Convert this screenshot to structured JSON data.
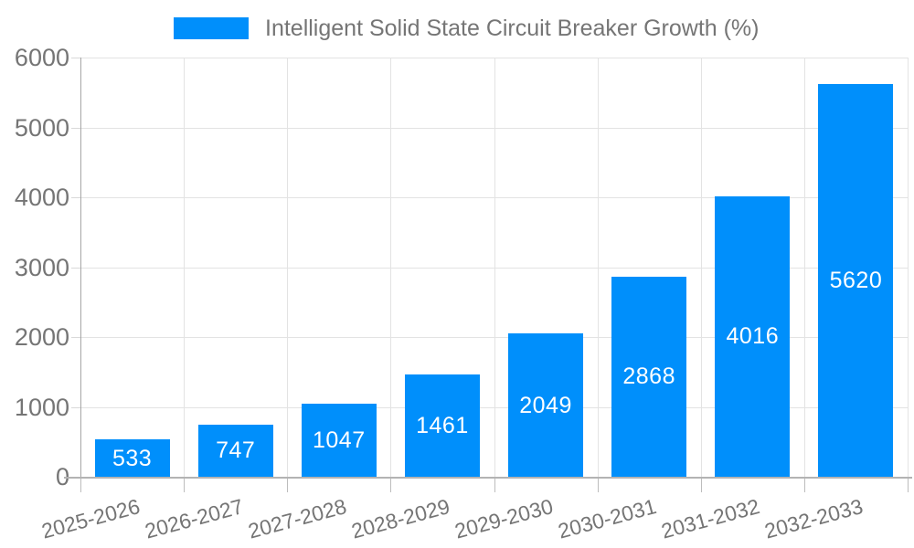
{
  "legend": {
    "series_label": "Intelligent Solid State Circuit Breaker Growth (%)"
  },
  "colors": {
    "bar": "#008FFB",
    "text": "#757575",
    "data_label": "#ffffff",
    "grid": "#e3e3e3",
    "axis_left": "#a6a6a6",
    "axis_bottom": "#b3b3b3",
    "tick": "#d9d9d9",
    "tick_bottom": "#bdbdbd",
    "background": "#ffffff"
  },
  "chart_data": {
    "type": "bar",
    "title": "Intelligent Solid State Circuit Breaker Growth (%)",
    "categories": [
      "2025-2026",
      "2026-2027",
      "2027-2028",
      "2028-2029",
      "2029-2030",
      "2030-2031",
      "2031-2032",
      "2032-2033"
    ],
    "series": [
      {
        "name": "Intelligent Solid State Circuit Breaker Growth (%)",
        "values": [
          533,
          747,
          1047,
          1461,
          2049,
          2868,
          4016,
          5620
        ]
      }
    ],
    "data_labels": [
      "533",
      "747",
      "1047",
      "1461",
      "2049",
      "2868",
      "4016",
      "5620"
    ],
    "xlabel": "",
    "ylabel": "",
    "ylim": [
      0,
      6000
    ],
    "yticks": [
      0,
      1000,
      2000,
      3000,
      4000,
      5000,
      6000
    ],
    "grid": true,
    "legend_position": "top",
    "x_label_rotation_deg": -15,
    "data_label_position": "center"
  }
}
